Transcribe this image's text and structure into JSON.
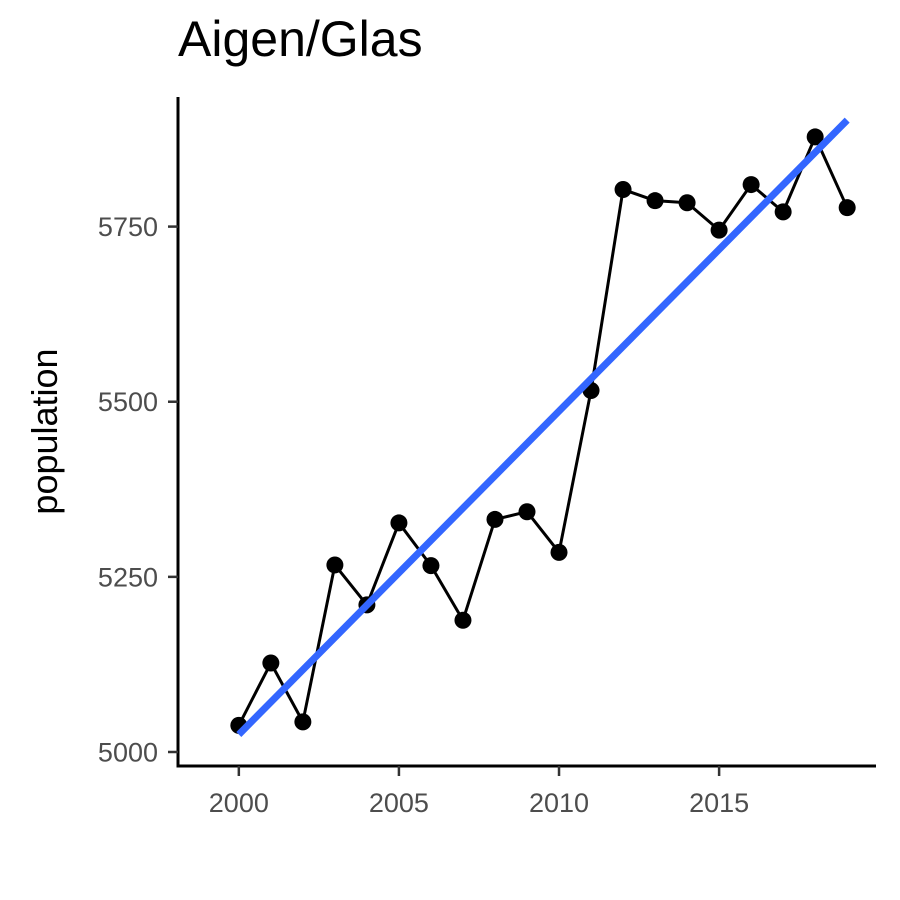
{
  "chart_data": {
    "type": "line",
    "title": "Aigen/Glas",
    "xlabel": "",
    "ylabel": "population",
    "x": [
      2000,
      2001,
      2002,
      2003,
      2004,
      2005,
      2006,
      2007,
      2008,
      2009,
      2010,
      2011,
      2012,
      2013,
      2014,
      2015,
      2016,
      2017,
      2018,
      2019
    ],
    "series": [
      {
        "values": [
          5038,
          5127,
          5043,
          5267,
          5210,
          5327,
          5266,
          5188,
          5332,
          5343,
          5285,
          5516,
          5803,
          5787,
          5784,
          5745,
          5810,
          5771,
          5878,
          5777
        ],
        "color": "#000000",
        "markers": true
      }
    ],
    "trend_line": {
      "method": "linear",
      "color": "#3366ff",
      "start": [
        2000,
        5025
      ],
      "end": [
        2019,
        5902
      ]
    },
    "xlim": [
      1998.1,
      2019.9
    ],
    "ylim": [
      4980,
      5935
    ],
    "x_ticks": [
      2000,
      2005,
      2010,
      2015
    ],
    "x_tick_labels": [
      "2000",
      "2005",
      "2010",
      "2015"
    ],
    "y_ticks": [
      5000,
      5250,
      5500,
      5750
    ],
    "y_tick_labels": [
      "5000",
      "5250",
      "5500",
      "5750"
    ],
    "grid": false,
    "legend": "none"
  }
}
